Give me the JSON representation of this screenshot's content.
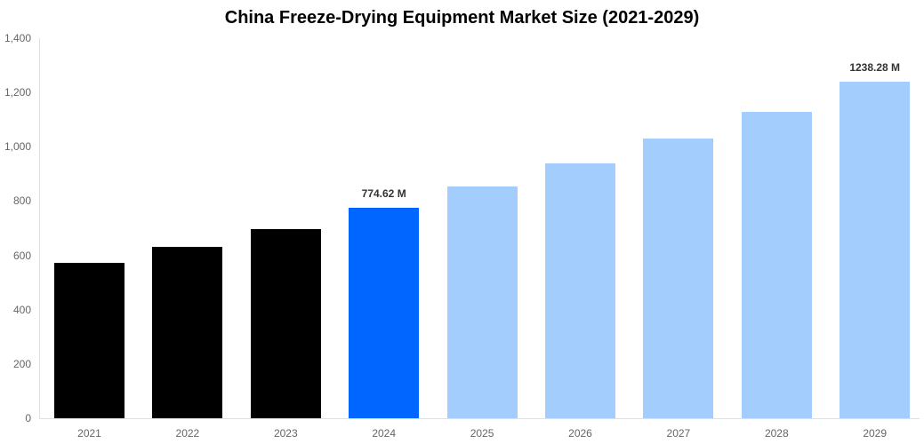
{
  "chart_data": {
    "type": "bar",
    "title": "China Freeze-Drying Equipment Market Size (2021-2029)",
    "xlabel": "",
    "ylabel": "",
    "ylim": [
      0,
      1400
    ],
    "yticks": [
      0,
      200,
      400,
      600,
      800,
      1000,
      1200,
      1400
    ],
    "ytick_labels": [
      "0",
      "200",
      "400",
      "600",
      "800",
      "1,000",
      "1,200",
      "1,400"
    ],
    "categories": [
      "2021",
      "2022",
      "2023",
      "2024",
      "2025",
      "2026",
      "2027",
      "2028",
      "2029"
    ],
    "values": [
      572,
      631,
      697,
      774.62,
      854,
      939,
      1030,
      1129,
      1238.28
    ],
    "colors": [
      "#000000",
      "#000000",
      "#000000",
      "#0066ff",
      "#a2cdfd",
      "#a2cdfd",
      "#a2cdfd",
      "#a2cdfd",
      "#a2cdfd"
    ],
    "data_labels": [
      {
        "index": 3,
        "text": "774.62 M"
      },
      {
        "index": 8,
        "text": "1238.28 M"
      }
    ],
    "grid": false,
    "legend": null
  }
}
